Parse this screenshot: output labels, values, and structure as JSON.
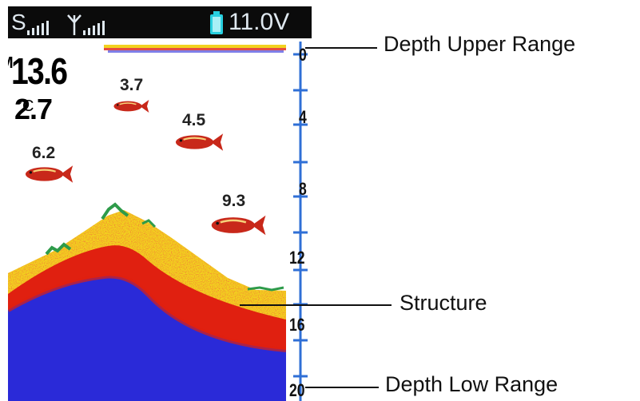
{
  "status": {
    "sonar_label": "S",
    "gps_label": "",
    "battery_voltage": "11.0V"
  },
  "readouts": {
    "depth_value": "13.6",
    "depth_unit": "M",
    "temp_value": "2.7",
    "temp_unit": "°C"
  },
  "fish": [
    {
      "depth_label": "3.7",
      "depth": 3.7
    },
    {
      "depth_label": "4.5",
      "depth": 4.5
    },
    {
      "depth_label": "6.2",
      "depth": 6.2
    },
    {
      "depth_label": "9.3",
      "depth": 9.3
    }
  ],
  "depth_scale": {
    "ticks": [
      "0",
      "4",
      "8",
      "12",
      "16",
      "20"
    ],
    "min": 0,
    "max": 20
  },
  "callouts": {
    "upper": "Depth Upper Range",
    "structure": "Structure",
    "low": "Depth Low Range"
  },
  "colors": {
    "scale_blue": "#2f6fd6",
    "fish_red": "#c8281a",
    "sonar_blue": "#2a2ad8",
    "sonar_red": "#e02010",
    "sonar_yellow": "#f2d21e",
    "sonar_green": "#2e9b4a",
    "battery_cyan": "#28d0e0"
  }
}
